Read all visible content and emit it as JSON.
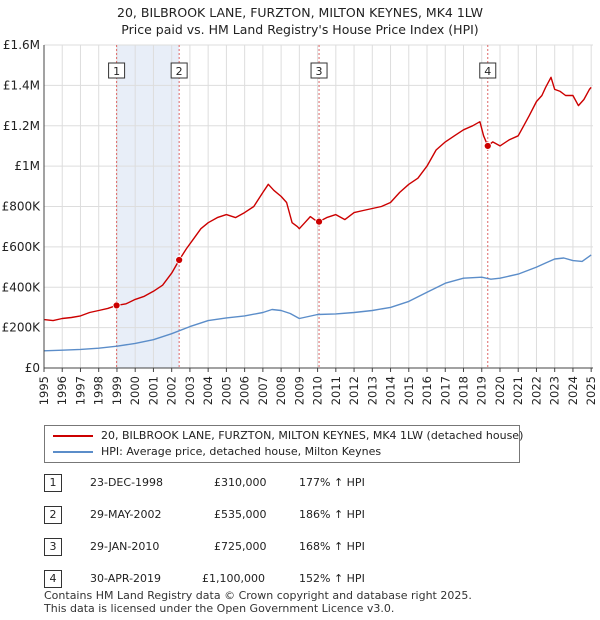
{
  "title": {
    "line1": "20, BILBROOK LANE, FURZTON, MILTON KEYNES, MK4 1LW",
    "line2": "Price paid vs. HM Land Registry's House Price Index (HPI)"
  },
  "colors": {
    "red": "#cc0000",
    "blue": "#5b8dc9",
    "shade": "#e8eef8",
    "grid": "#dddddd"
  },
  "chart_data": {
    "type": "line",
    "title": "Price paid vs. HM Land Registry's House Price Index (HPI)",
    "xlim": [
      1995,
      2025.1
    ],
    "ylim": [
      0,
      1600000
    ],
    "yticks": [
      0,
      200000,
      400000,
      600000,
      800000,
      1000000,
      1200000,
      1400000,
      1600000
    ],
    "ytick_labels": [
      "£0",
      "£200K",
      "£400K",
      "£600K",
      "£800K",
      "£1M",
      "£1.2M",
      "£1.4M",
      "£1.6M"
    ],
    "xticks": [
      "1995",
      "1996",
      "1997",
      "1998",
      "1999",
      "2000",
      "2001",
      "2002",
      "2003",
      "2004",
      "2005",
      "2006",
      "2007",
      "2008",
      "2009",
      "2010",
      "2011",
      "2012",
      "2013",
      "2014",
      "2015",
      "2016",
      "2017",
      "2018",
      "2019",
      "2020",
      "2021",
      "2022",
      "2023",
      "2024",
      "2025"
    ],
    "series": [
      {
        "name": "20, BILBROOK LANE, FURZTON, MILTON KEYNES, MK4 1LW (detached house)",
        "color": "#cc0000",
        "x": [
          1995.0,
          1995.5,
          1996.0,
          1996.5,
          1997.0,
          1997.5,
          1998.0,
          1998.5,
          1998.98,
          1999.5,
          2000.0,
          2000.5,
          2001.0,
          2001.5,
          2002.0,
          2002.41,
          2002.8,
          2003.2,
          2003.6,
          2004.0,
          2004.5,
          2005.0,
          2005.5,
          2006.0,
          2006.5,
          2007.0,
          2007.3,
          2007.6,
          2008.0,
          2008.3,
          2008.6,
          2008.9,
          2009.0,
          2009.3,
          2009.6,
          2009.9,
          2010.08,
          2010.5,
          2011.0,
          2011.5,
          2012.0,
          2012.5,
          2013.0,
          2013.5,
          2014.0,
          2014.5,
          2015.0,
          2015.5,
          2016.0,
          2016.5,
          2017.0,
          2017.5,
          2018.0,
          2018.5,
          2018.9,
          2019.1,
          2019.33,
          2019.6,
          2020.0,
          2020.5,
          2021.0,
          2021.3,
          2021.6,
          2022.0,
          2022.3,
          2022.5,
          2022.8,
          2023.0,
          2023.3,
          2023.6,
          2024.0,
          2024.3,
          2024.6,
          2024.9,
          2025.0
        ],
        "values": [
          240000,
          235000,
          245000,
          250000,
          258000,
          275000,
          285000,
          295000,
          310000,
          318000,
          340000,
          355000,
          380000,
          410000,
          470000,
          535000,
          590000,
          640000,
          690000,
          720000,
          745000,
          760000,
          745000,
          770000,
          800000,
          870000,
          910000,
          880000,
          850000,
          820000,
          720000,
          700000,
          690000,
          720000,
          750000,
          730000,
          725000,
          745000,
          760000,
          735000,
          770000,
          780000,
          790000,
          800000,
          820000,
          870000,
          910000,
          940000,
          1000000,
          1080000,
          1120000,
          1150000,
          1180000,
          1200000,
          1220000,
          1150000,
          1100000,
          1120000,
          1100000,
          1130000,
          1150000,
          1200000,
          1250000,
          1320000,
          1350000,
          1390000,
          1440000,
          1380000,
          1370000,
          1350000,
          1350000,
          1300000,
          1330000,
          1380000,
          1390000
        ]
      },
      {
        "name": "HPI: Average price, detached house, Milton Keynes",
        "color": "#5b8dc9",
        "x": [
          1995.0,
          1996.0,
          1997.0,
          1998.0,
          1999.0,
          2000.0,
          2001.0,
          2002.0,
          2003.0,
          2004.0,
          2005.0,
          2006.0,
          2007.0,
          2007.5,
          2008.0,
          2008.5,
          2009.0,
          2009.5,
          2010.0,
          2011.0,
          2012.0,
          2013.0,
          2014.0,
          2015.0,
          2016.0,
          2017.0,
          2018.0,
          2019.0,
          2019.5,
          2020.0,
          2021.0,
          2022.0,
          2022.5,
          2023.0,
          2023.5,
          2024.0,
          2024.5,
          2025.0
        ],
        "values": [
          85000,
          88000,
          92000,
          98000,
          108000,
          122000,
          140000,
          170000,
          205000,
          235000,
          248000,
          258000,
          275000,
          290000,
          285000,
          270000,
          245000,
          255000,
          265000,
          268000,
          275000,
          285000,
          300000,
          330000,
          375000,
          420000,
          445000,
          450000,
          440000,
          445000,
          465000,
          500000,
          520000,
          540000,
          545000,
          532000,
          528000,
          560000
        ]
      }
    ],
    "sales": [
      {
        "id": "1",
        "x": 1998.98,
        "value": 310000
      },
      {
        "id": "2",
        "x": 2002.41,
        "value": 535000
      },
      {
        "id": "3",
        "x": 2010.08,
        "value": 725000
      },
      {
        "id": "4",
        "x": 2019.33,
        "value": 1100000
      }
    ],
    "shaded_ranges": [
      [
        1998.98,
        2002.41
      ]
    ]
  },
  "legend": {
    "red_label": "20, BILBROOK LANE, FURZTON, MILTON KEYNES, MK4 1LW (detached house)",
    "blue_label": "HPI: Average price, detached house, Milton Keynes"
  },
  "transactions": [
    {
      "id": "1",
      "date": "23-DEC-1998",
      "price": "£310,000",
      "pct": "177% ↑ HPI"
    },
    {
      "id": "2",
      "date": "29-MAY-2002",
      "price": "£535,000",
      "pct": "186% ↑ HPI"
    },
    {
      "id": "3",
      "date": "29-JAN-2010",
      "price": "£725,000",
      "pct": "168% ↑ HPI"
    },
    {
      "id": "4",
      "date": "30-APR-2019",
      "price": "£1,100,000",
      "pct": "152% ↑ HPI"
    }
  ],
  "footer": {
    "line1": "Contains HM Land Registry data © Crown copyright and database right 2025.",
    "line2": "This data is licensed under the Open Government Licence v3.0."
  }
}
